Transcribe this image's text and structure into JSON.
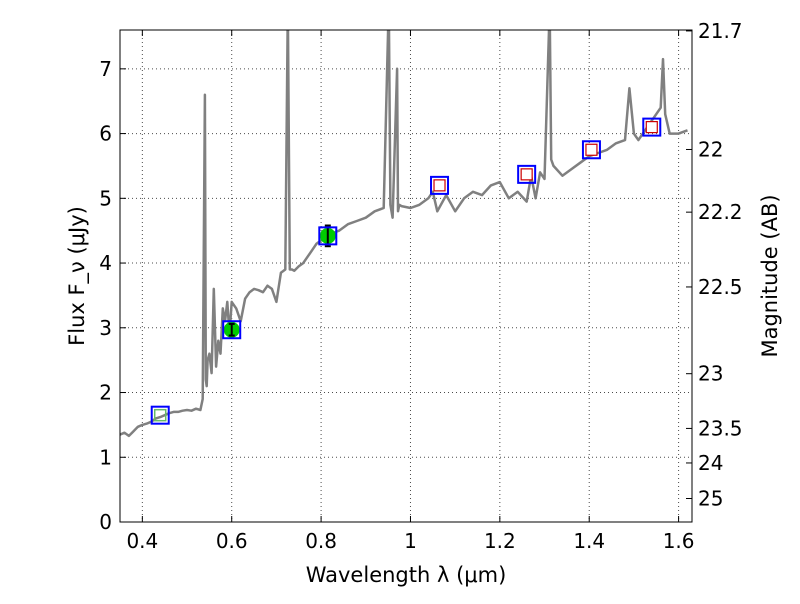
{
  "colors": {
    "spectrum": "#808080",
    "model_box": "#0000ff",
    "upper_limit_box": "#cc0000",
    "detection_fill": "#00cc00",
    "first_box_inner": "#66bb66",
    "error_bar": "#000000"
  },
  "chart_data": {
    "type": "line",
    "title": "",
    "xlabel": "Wavelength λ (μm)",
    "ylabel": "Flux F_ν (μJy)",
    "y2label": "Magnitude (AB)",
    "xlim": [
      0.35,
      1.63
    ],
    "ylim": [
      0,
      7.6
    ],
    "grid": true,
    "x_ticks": [
      {
        "value": 0.4,
        "label": "0.4"
      },
      {
        "value": 0.6,
        "label": "0.6"
      },
      {
        "value": 0.8,
        "label": "0.8"
      },
      {
        "value": 1.0,
        "label": "1"
      },
      {
        "value": 1.2,
        "label": "1.2"
      },
      {
        "value": 1.4,
        "label": "1.4"
      },
      {
        "value": 1.6,
        "label": "1.6"
      }
    ],
    "y_ticks": [
      {
        "value": 0,
        "label": "0"
      },
      {
        "value": 1,
        "label": "1"
      },
      {
        "value": 2,
        "label": "2"
      },
      {
        "value": 3,
        "label": "3"
      },
      {
        "value": 4,
        "label": "4"
      },
      {
        "value": 5,
        "label": "5"
      },
      {
        "value": 6,
        "label": "6"
      },
      {
        "value": 7,
        "label": "7"
      }
    ],
    "y2_ticks": [
      {
        "mag": 21.7,
        "label": "21.7"
      },
      {
        "mag": 22,
        "label": "22"
      },
      {
        "mag": 22.2,
        "label": "22.2"
      },
      {
        "mag": 22.5,
        "label": "22.5"
      },
      {
        "mag": 23,
        "label": "23"
      },
      {
        "mag": 23.5,
        "label": "23.5"
      },
      {
        "mag": 24,
        "label": "24"
      },
      {
        "mag": 25,
        "label": "25"
      }
    ],
    "series": [
      {
        "type": "line",
        "x": [
          0.35,
          0.36,
          0.37,
          0.38,
          0.39,
          0.4,
          0.41,
          0.42,
          0.43,
          0.44,
          0.45,
          0.46,
          0.47,
          0.48,
          0.49,
          0.5,
          0.51,
          0.52,
          0.53,
          0.535,
          0.54,
          0.542,
          0.544,
          0.546,
          0.55,
          0.555,
          0.56,
          0.565,
          0.57,
          0.575,
          0.58,
          0.585,
          0.59,
          0.595,
          0.6,
          0.61,
          0.62,
          0.63,
          0.64,
          0.65,
          0.66,
          0.67,
          0.68,
          0.69,
          0.7,
          0.71,
          0.72,
          0.725,
          0.726,
          0.73,
          0.735,
          0.74,
          0.75,
          0.76,
          0.77,
          0.78,
          0.79,
          0.8,
          0.82,
          0.84,
          0.86,
          0.88,
          0.9,
          0.92,
          0.94,
          0.95,
          0.952,
          0.955,
          0.96,
          0.97,
          0.972,
          0.975,
          0.98,
          1.0,
          1.02,
          1.04,
          1.05,
          1.06,
          1.08,
          1.1,
          1.12,
          1.14,
          1.16,
          1.18,
          1.2,
          1.22,
          1.24,
          1.26,
          1.27,
          1.28,
          1.29,
          1.3,
          1.31,
          1.312,
          1.315,
          1.32,
          1.34,
          1.36,
          1.38,
          1.4,
          1.42,
          1.44,
          1.46,
          1.48,
          1.49,
          1.5,
          1.51,
          1.52,
          1.54,
          1.56,
          1.565,
          1.57,
          1.58,
          1.6,
          1.62
        ],
        "y": [
          1.35,
          1.38,
          1.33,
          1.4,
          1.47,
          1.5,
          1.52,
          1.55,
          1.6,
          1.62,
          1.65,
          1.68,
          1.7,
          1.7,
          1.72,
          1.73,
          1.72,
          1.75,
          1.73,
          1.9,
          6.6,
          2.2,
          2.1,
          2.5,
          2.6,
          2.3,
          3.6,
          2.4,
          2.8,
          2.6,
          3.3,
          3.1,
          3.4,
          2.9,
          3.4,
          3.3,
          3.1,
          3.45,
          3.55,
          3.6,
          3.58,
          3.55,
          3.65,
          3.6,
          3.4,
          3.85,
          3.9,
          7.6,
          7.6,
          3.9,
          3.9,
          3.88,
          3.95,
          4.0,
          4.1,
          4.2,
          4.3,
          4.35,
          4.45,
          4.5,
          4.6,
          4.65,
          4.7,
          4.8,
          4.85,
          7.6,
          7.6,
          4.9,
          4.7,
          7.0,
          4.8,
          4.9,
          4.88,
          4.85,
          4.9,
          5.0,
          5.1,
          4.8,
          5.05,
          4.8,
          5.0,
          5.1,
          5.05,
          5.2,
          5.25,
          5.0,
          5.1,
          4.95,
          5.35,
          5.0,
          5.4,
          5.3,
          7.6,
          7.6,
          5.6,
          5.5,
          5.35,
          5.45,
          5.55,
          5.65,
          5.7,
          5.75,
          5.85,
          5.9,
          6.7,
          6.0,
          5.9,
          6.0,
          6.2,
          6.4,
          7.15,
          6.3,
          6.0,
          6.0,
          6.05
        ]
      },
      {
        "type": "markers",
        "marker": "detection",
        "x": [
          0.6,
          0.815
        ],
        "y": [
          2.97,
          4.42
        ],
        "yerr": [
          0.09,
          0.16
        ]
      },
      {
        "type": "markers",
        "marker": "upper-limit",
        "x": [
          1.065,
          1.26,
          1.405,
          1.54
        ],
        "y": [
          5.2,
          5.37,
          5.75,
          6.1
        ]
      },
      {
        "type": "markers",
        "marker": "model-box",
        "x": [
          0.44,
          0.6,
          0.815,
          1.065,
          1.26,
          1.405,
          1.54
        ],
        "y": [
          1.65,
          2.97,
          4.42,
          5.2,
          5.37,
          5.75,
          6.1
        ]
      }
    ]
  }
}
